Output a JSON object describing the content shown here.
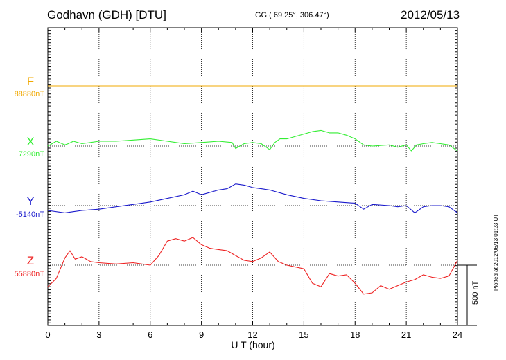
{
  "header": {
    "station": "Godhavn (GDH)  [DTU]",
    "coords": "GG ( 69.25°, 306.47°)",
    "date": "2012/05/13"
  },
  "plotted_note": "Plotted at 2012/06/13 01:23  UT",
  "scale_label": "500 nT",
  "colors": {
    "F": "#f0a800",
    "X": "#33ee33",
    "Y": "#1a1acc",
    "Z": "#ee2222"
  },
  "chart_data": {
    "type": "line",
    "xlabel": "U T (hour)",
    "xlim": [
      0,
      24
    ],
    "xticks": [
      "0",
      "3",
      "6",
      "9",
      "12",
      "15",
      "18",
      "21",
      "24"
    ],
    "scale_nT": 500,
    "grid": true,
    "series": [
      {
        "name": "F",
        "baseline_label": "88880nT",
        "x": [
          0,
          24
        ],
        "values_nT": [
          0,
          0
        ]
      },
      {
        "name": "X",
        "baseline_label": "7290nT",
        "x": [
          0,
          0.5,
          1,
          1.2,
          1.5,
          2,
          3,
          4,
          5,
          6,
          7,
          8,
          9,
          10,
          10.8,
          11,
          11.5,
          12,
          12.5,
          13,
          13.3,
          13.6,
          14,
          14.5,
          15,
          15.5,
          16,
          16.5,
          17,
          17.5,
          18,
          18.5,
          19,
          20,
          20.5,
          21,
          21.3,
          21.6,
          22,
          22.5,
          23,
          23.5,
          24
        ],
        "values_nT": [
          0,
          40,
          10,
          20,
          40,
          20,
          40,
          40,
          50,
          60,
          40,
          20,
          30,
          40,
          30,
          -20,
          20,
          30,
          20,
          -30,
          30,
          60,
          60,
          80,
          100,
          120,
          130,
          110,
          110,
          90,
          60,
          10,
          0,
          10,
          -10,
          10,
          -40,
          10,
          20,
          30,
          20,
          10,
          -40
        ]
      },
      {
        "name": "Y",
        "baseline_label": "-5140nT",
        "x": [
          0,
          1,
          1.5,
          2,
          3,
          4,
          5,
          6,
          7,
          8,
          8.5,
          9,
          10,
          10.5,
          11,
          11.5,
          12,
          12.5,
          13,
          14,
          15,
          16,
          17,
          18,
          18.5,
          19,
          20,
          20.5,
          21,
          21.5,
          22,
          22.5,
          23,
          23.5,
          24
        ],
        "values_nT": [
          -40,
          -60,
          -50,
          -40,
          -30,
          -10,
          10,
          30,
          60,
          90,
          120,
          90,
          130,
          140,
          180,
          170,
          150,
          140,
          130,
          90,
          60,
          40,
          30,
          20,
          -30,
          10,
          0,
          -10,
          0,
          -60,
          -10,
          0,
          0,
          -10,
          -60
        ]
      },
      {
        "name": "Z",
        "baseline_label": "55880nT",
        "x": [
          0,
          0.5,
          1,
          1.3,
          1.6,
          2,
          2.5,
          3,
          4,
          5,
          6,
          6.5,
          7,
          7.5,
          8,
          8.5,
          9,
          9.5,
          10,
          10.5,
          11,
          11.5,
          12,
          12.5,
          13,
          13.5,
          14,
          15,
          15.5,
          16,
          16.5,
          17,
          17.5,
          18,
          18.5,
          19,
          19.5,
          20,
          21,
          21.5,
          22,
          22.5,
          23,
          23.5,
          24
        ],
        "values_nT": [
          -180,
          -110,
          60,
          120,
          50,
          70,
          30,
          20,
          10,
          20,
          0,
          80,
          200,
          220,
          200,
          230,
          170,
          140,
          130,
          120,
          80,
          40,
          30,
          60,
          110,
          30,
          0,
          -30,
          -150,
          -180,
          -70,
          -90,
          -80,
          -150,
          -240,
          -230,
          -170,
          -200,
          -140,
          -120,
          -80,
          -100,
          -110,
          -90,
          40
        ]
      }
    ]
  }
}
